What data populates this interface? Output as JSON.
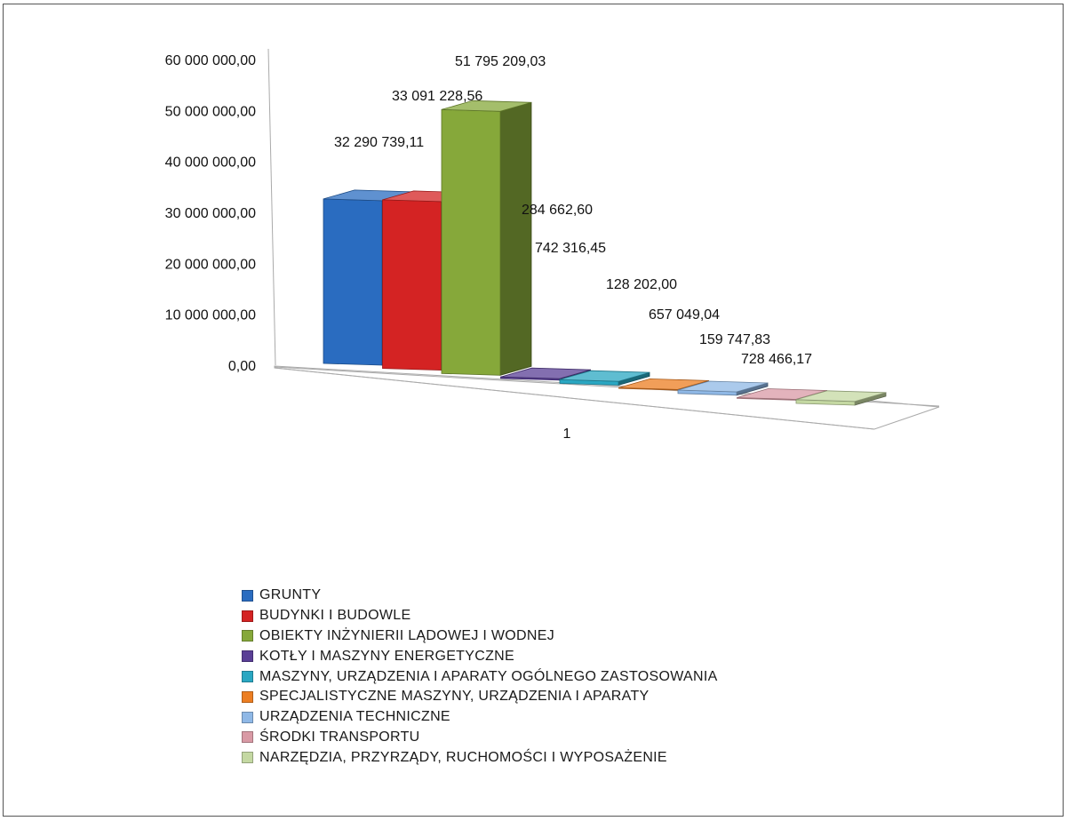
{
  "chart_data": {
    "type": "bar",
    "categories": [
      "1"
    ],
    "y_ticks": [
      "0,00",
      "10 000 000,00",
      "20 000 000,00",
      "30 000 000,00",
      "40 000 000,00",
      "50 000 000,00",
      "60 000 000,00"
    ],
    "ylim": [
      0,
      60000000
    ],
    "grid": false,
    "legend_position": "bottom",
    "series": [
      {
        "name": "GRUNTY",
        "values": [
          32290739.11
        ],
        "label": "32 290 739,11",
        "color": "#2a6cc0"
      },
      {
        "name": "BUDYNKI I BUDOWLE",
        "values": [
          33091228.56
        ],
        "label": "33 091 228,56",
        "color": "#d42323"
      },
      {
        "name": "OBIEKTY INŻYNIERII LĄDOWEJ I WODNEJ",
        "values": [
          51795209.03
        ],
        "label": "51 795 209,03",
        "color": "#86a83a"
      },
      {
        "name": "KOTŁY I MASZYNY ENERGETYCZNE",
        "values": [
          284662.6
        ],
        "label": "284 662,60",
        "color": "#5a3f96"
      },
      {
        "name": "MASZYNY, URZĄDZENIA I APARATY OGÓLNEGO ZASTOSOWANIA",
        "values": [
          742316.45
        ],
        "label": "742 316,45",
        "color": "#2aa7c2"
      },
      {
        "name": "SPECJALISTYCZNE MASZYNY, URZĄDZENIA I APARATY",
        "values": [
          128202.0
        ],
        "label": "128 202,00",
        "color": "#ec7e22"
      },
      {
        "name": "URZĄDZENIA TECHNICZNE",
        "values": [
          657049.04
        ],
        "label": "657 049,04",
        "color": "#8fb8e6"
      },
      {
        "name": "ŚRODKI TRANSPORTU",
        "values": [
          159747.83
        ],
        "label": "159 747,83",
        "color": "#d99aa5"
      },
      {
        "name": "NARZĘDZIA, PRZYRZĄDY, RUCHOMOŚCI I WYPOSAŻENIE",
        "values": [
          728466.17
        ],
        "label": "728 466,17",
        "color": "#c4d8a2"
      }
    ]
  }
}
